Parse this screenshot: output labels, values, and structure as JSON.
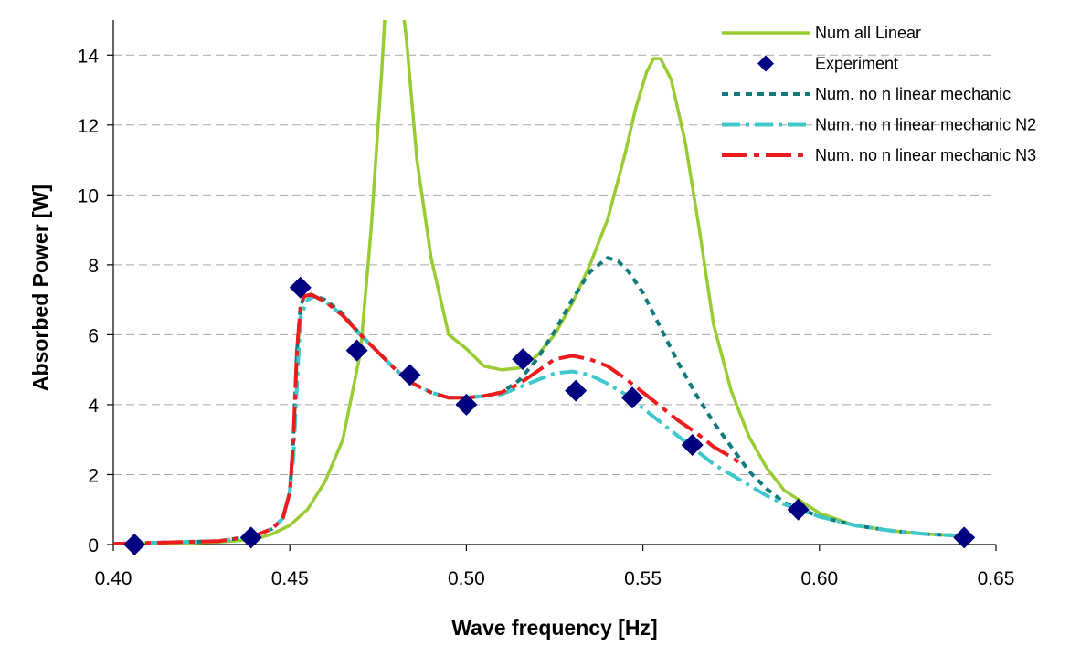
{
  "chart_data": {
    "type": "line",
    "title": "",
    "xlabel": "Wave frequency [Hz]",
    "ylabel": "Absorbed Power [W]",
    "xlim": [
      0.4,
      0.65
    ],
    "ylim": [
      0,
      15
    ],
    "x_ticks": [
      0.4,
      0.45,
      0.5,
      0.55,
      0.6,
      0.65
    ],
    "x_tick_labels": [
      "0.40",
      "0.45",
      "0.50",
      "0.55",
      "0.60",
      "0.65"
    ],
    "y_ticks": [
      0,
      2,
      4,
      6,
      8,
      10,
      12,
      14
    ],
    "y_tick_labels": [
      "0",
      "2",
      "4",
      "6",
      "8",
      "10",
      "12",
      "14"
    ],
    "grid": "horizontal dashed",
    "legend_position": "top-right",
    "series": [
      {
        "name": "Num all Linear",
        "style": "solid",
        "color": "#99CC33",
        "x": [
          0.4,
          0.42,
          0.43,
          0.44,
          0.445,
          0.45,
          0.455,
          0.46,
          0.465,
          0.47,
          0.473,
          0.476,
          0.478,
          0.48,
          0.483,
          0.486,
          0.49,
          0.495,
          0.5,
          0.505,
          0.51,
          0.515,
          0.52,
          0.525,
          0.53,
          0.535,
          0.54,
          0.545,
          0.548,
          0.551,
          0.553,
          0.555,
          0.558,
          0.562,
          0.566,
          0.57,
          0.575,
          0.58,
          0.585,
          0.59,
          0.6,
          0.61,
          0.62,
          0.63,
          0.64
        ],
        "y": [
          0.02,
          0.04,
          0.07,
          0.15,
          0.3,
          0.55,
          1.0,
          1.8,
          3.0,
          5.5,
          9.0,
          13.5,
          17,
          17,
          14.5,
          11,
          8.2,
          6.0,
          5.6,
          5.1,
          5.0,
          5.05,
          5.4,
          6.0,
          6.9,
          8.0,
          9.3,
          11.2,
          12.5,
          13.5,
          13.9,
          13.9,
          13.3,
          11.5,
          9.0,
          6.3,
          4.4,
          3.1,
          2.2,
          1.55,
          0.9,
          0.55,
          0.4,
          0.3,
          0.25
        ]
      },
      {
        "name": "Experiment",
        "style": "markers",
        "color": "#000080",
        "x": [
          0.406,
          0.439,
          0.453,
          0.469,
          0.484,
          0.5,
          0.516,
          0.531,
          0.547,
          0.564,
          0.594,
          0.641
        ],
        "y": [
          0.0,
          0.2,
          7.35,
          5.55,
          4.85,
          4.0,
          5.3,
          4.4,
          4.2,
          2.85,
          1.0,
          0.2
        ]
      },
      {
        "name": "Num. no n linear mechanic",
        "style": "dotted",
        "color": "#117A7A",
        "x": [
          0.4,
          0.43,
          0.44,
          0.445,
          0.448,
          0.45,
          0.451,
          0.452,
          0.453,
          0.454,
          0.456,
          0.46,
          0.465,
          0.47,
          0.475,
          0.48,
          0.485,
          0.49,
          0.495,
          0.5,
          0.505,
          0.51,
          0.515,
          0.52,
          0.525,
          0.53,
          0.535,
          0.54,
          0.543,
          0.546,
          0.55,
          0.555,
          0.56,
          0.565,
          0.57,
          0.575,
          0.58,
          0.585,
          0.59,
          0.6,
          0.61,
          0.62,
          0.63,
          0.64
        ],
        "y": [
          0.02,
          0.1,
          0.25,
          0.45,
          0.75,
          1.5,
          3.0,
          5.5,
          6.8,
          7.1,
          7.15,
          7.0,
          6.6,
          6.0,
          5.5,
          5.0,
          4.6,
          4.35,
          4.2,
          4.2,
          4.25,
          4.35,
          4.7,
          5.3,
          6.1,
          7.0,
          7.8,
          8.2,
          8.1,
          7.8,
          7.2,
          6.2,
          5.2,
          4.3,
          3.5,
          2.8,
          2.1,
          1.6,
          1.2,
          0.8,
          0.55,
          0.4,
          0.3,
          0.25
        ]
      },
      {
        "name": "Num. no n linear mechanic N2",
        "style": "dash-dot",
        "color": "#3FC8CC",
        "x": [
          0.4,
          0.43,
          0.44,
          0.445,
          0.448,
          0.45,
          0.451,
          0.452,
          0.453,
          0.455,
          0.457,
          0.46,
          0.465,
          0.47,
          0.475,
          0.48,
          0.485,
          0.49,
          0.495,
          0.5,
          0.505,
          0.51,
          0.515,
          0.52,
          0.525,
          0.53,
          0.535,
          0.54,
          0.545,
          0.55,
          0.555,
          0.56,
          0.565,
          0.57,
          0.575,
          0.58,
          0.585,
          0.59,
          0.6,
          0.61,
          0.62,
          0.63,
          0.64
        ],
        "y": [
          0.02,
          0.1,
          0.25,
          0.45,
          0.75,
          1.5,
          2.5,
          4.5,
          6.5,
          7.0,
          7.1,
          6.95,
          6.55,
          6.0,
          5.5,
          5.0,
          4.6,
          4.35,
          4.2,
          4.2,
          4.25,
          4.3,
          4.5,
          4.7,
          4.9,
          4.95,
          4.85,
          4.6,
          4.3,
          3.9,
          3.5,
          3.1,
          2.7,
          2.3,
          2.0,
          1.7,
          1.4,
          1.15,
          0.8,
          0.55,
          0.4,
          0.3,
          0.25
        ]
      },
      {
        "name": "Num. no n linear mechanic N3",
        "style": "long-dash-dot",
        "color": "#EE1C1C",
        "x": [
          0.4,
          0.43,
          0.44,
          0.445,
          0.448,
          0.45,
          0.451,
          0.452,
          0.453,
          0.454,
          0.456,
          0.46,
          0.465,
          0.47,
          0.475,
          0.48,
          0.485,
          0.49,
          0.495,
          0.5,
          0.505,
          0.51,
          0.515,
          0.52,
          0.525,
          0.53,
          0.535,
          0.54,
          0.545,
          0.55,
          0.555,
          0.56,
          0.565,
          0.57,
          0.575,
          0.578
        ],
        "y": [
          0.02,
          0.1,
          0.25,
          0.45,
          0.75,
          1.5,
          3.0,
          5.5,
          6.8,
          7.1,
          7.15,
          6.95,
          6.55,
          6.0,
          5.5,
          5.0,
          4.6,
          4.35,
          4.2,
          4.2,
          4.25,
          4.35,
          4.6,
          4.95,
          5.3,
          5.4,
          5.3,
          5.1,
          4.75,
          4.35,
          3.95,
          3.55,
          3.2,
          2.8,
          2.5,
          2.3
        ]
      }
    ]
  }
}
